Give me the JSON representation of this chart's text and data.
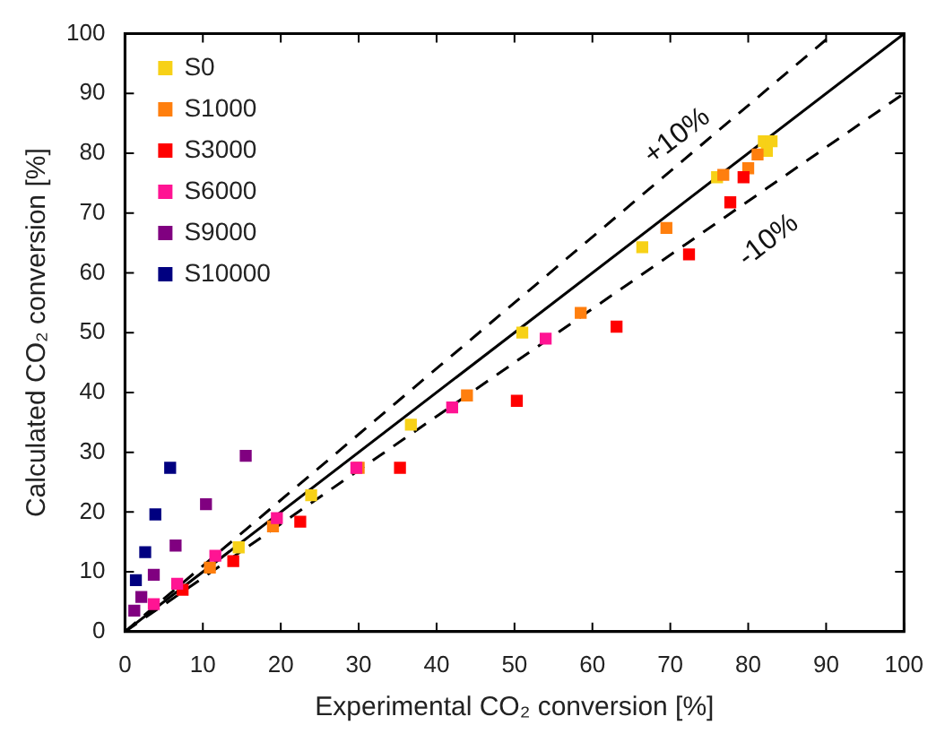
{
  "chart_data": {
    "type": "scatter",
    "xlabel": "Experimental CO₂ conversion [%]",
    "ylabel": "Calculated CO₂ conversion [%]",
    "xlim": [
      0,
      100
    ],
    "ylim": [
      0,
      100
    ],
    "xticks": [
      0,
      10,
      20,
      30,
      40,
      50,
      60,
      70,
      80,
      90,
      100
    ],
    "yticks": [
      0,
      10,
      20,
      30,
      40,
      50,
      60,
      70,
      80,
      90,
      100
    ],
    "grid": false,
    "legend": "top left",
    "marker": "square",
    "annotations": [
      "+10%",
      "-10%"
    ],
    "series": [
      {
        "name": "S0",
        "color": "#f7d117",
        "x": [
          14.6,
          23.9,
          36.7,
          51,
          66.4,
          76,
          82,
          82.4,
          83
        ],
        "values": [
          14.1,
          22.8,
          34.6,
          50,
          64.3,
          76,
          82,
          80.4,
          82
        ]
      },
      {
        "name": "S1000",
        "color": "#ff7f0e",
        "x": [
          10.9,
          19,
          30,
          43.9,
          58.5,
          69.5,
          76.8,
          80,
          81.2
        ],
        "values": [
          10.7,
          17.6,
          27.4,
          39.5,
          53.3,
          67.5,
          76.4,
          77.5,
          79.8
        ]
      },
      {
        "name": "S3000",
        "color": "#ff0000",
        "x": [
          7.4,
          13.9,
          22.5,
          35.3,
          50.3,
          63.1,
          72.4,
          77.7,
          79.4
        ],
        "values": [
          7,
          11.8,
          18.4,
          27.4,
          38.6,
          51,
          63.1,
          71.8,
          76
        ]
      },
      {
        "name": "S6000",
        "color": "#ff1493",
        "x": [
          3.7,
          6.7,
          11.6,
          19.5,
          29.7,
          42,
          54
        ],
        "values": [
          4.6,
          8,
          12.7,
          19,
          27.4,
          37.5,
          49
        ]
      },
      {
        "name": "S9000",
        "color": "#800080",
        "x": [
          1.2,
          2.1,
          3.7,
          6.5,
          10.4,
          15.5
        ],
        "values": [
          3.5,
          5.8,
          9.5,
          14.4,
          21.3,
          29.4
        ]
      },
      {
        "name": "S10000",
        "color": "#000080",
        "x": [
          1.4,
          2.6,
          3.9,
          5.8
        ],
        "values": [
          8.6,
          13.3,
          19.6,
          27.4
        ]
      },
      {
        "type": "line",
        "color": "#000000",
        "line_style": "solid",
        "marker": "none",
        "x": [
          0,
          100
        ],
        "values": [
          0,
          100
        ]
      },
      {
        "type": "line",
        "color": "#000000",
        "line_style": "dashed",
        "marker": "none",
        "x": [
          0,
          90.9
        ],
        "values": [
          0,
          100
        ]
      },
      {
        "type": "line",
        "color": "#000000",
        "line_style": "dashed",
        "marker": "none",
        "x": [
          0,
          100
        ],
        "values": [
          0,
          90
        ]
      }
    ]
  }
}
